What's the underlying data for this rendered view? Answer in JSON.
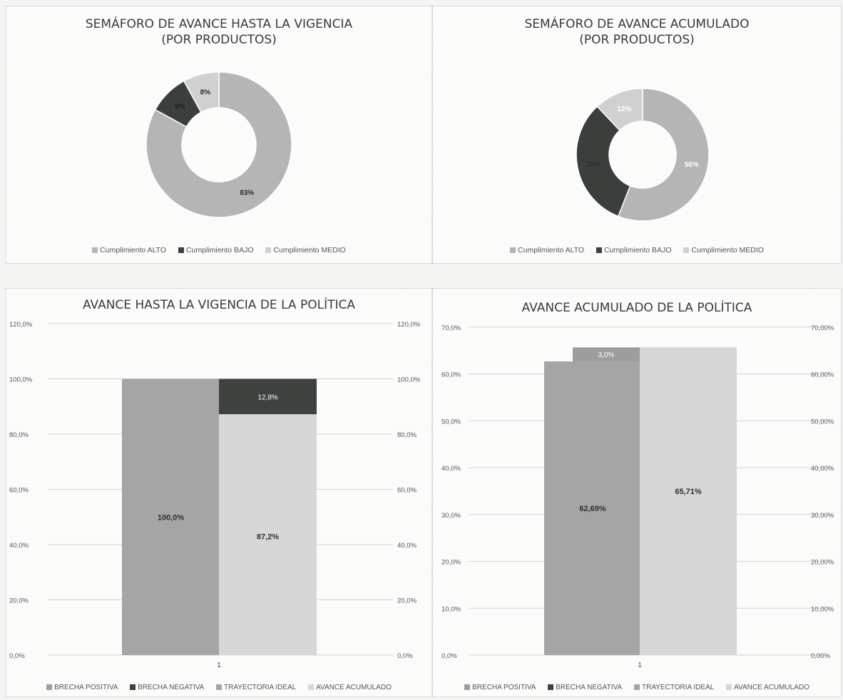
{
  "colors": {
    "alto": "#b5b5b5",
    "bajo": "#3a3f3c",
    "medio": "#d0d0d0",
    "brecha_positiva": "#9d9d9d",
    "brecha_negativa": "#3d423f",
    "trayectoria_ideal": "#a5a5a5",
    "avance_acumulado": "#d7d7d7",
    "grid": "#d4d4d4"
  },
  "chart_data": [
    {
      "type": "pie",
      "donut": true,
      "title_line1": "SEMÁFORO DE AVANCE HASTA LA VIGENCIA",
      "title_line2": "(POR PRODUCTOS)",
      "slices": [
        {
          "label": "Cumplimiento ALTO",
          "value": 83,
          "text": "83%"
        },
        {
          "label": "Cumplimiento BAJO",
          "value": 9,
          "text": "9%"
        },
        {
          "label": "Cumplimiento MEDIO",
          "value": 8,
          "text": "8%"
        }
      ],
      "legend": [
        "Cumplimiento ALTO",
        "Cumplimiento BAJO",
        "Cumplimiento MEDIO"
      ]
    },
    {
      "type": "pie",
      "donut": true,
      "title_line1": "SEMÁFORO DE AVANCE ACUMULADO",
      "title_line2": "(POR PRODUCTOS)",
      "slices": [
        {
          "label": "Cumplimiento ALTO",
          "value": 56,
          "text": "56%"
        },
        {
          "label": "Cumplimiento BAJO",
          "value": 32,
          "text": "32%"
        },
        {
          "label": "Cumplimiento MEDIO",
          "value": 12,
          "text": "12%"
        }
      ],
      "legend": [
        "Cumplimiento ALTO",
        "Cumplimiento BAJO",
        "Cumplimiento MEDIO"
      ]
    },
    {
      "type": "bar",
      "title": "AVANCE HASTA LA VIGENCIA DE LA POLÍTICA",
      "categories": [
        "1"
      ],
      "ylim": [
        0,
        120
      ],
      "yticks": [
        "0,0%",
        "20,0%",
        "40,0%",
        "60,0%",
        "80,0%",
        "100,0%",
        "120,0%"
      ],
      "series": [
        {
          "name": "BRECHA POSITIVA",
          "value": 0
        },
        {
          "name": "BRECHA NEGATIVA",
          "value": 12.8,
          "text": "12,8%"
        },
        {
          "name": "TRAYECTORIA IDEAL",
          "value": 100.0,
          "text": "100,0%"
        },
        {
          "name": "AVANCE ACUMULADO",
          "value": 87.2,
          "text": "87,2%"
        }
      ],
      "legend": [
        "BRECHA POSITIVA",
        "BRECHA NEGATIVA",
        "TRAYECTORIA IDEAL",
        "AVANCE ACUMULADO"
      ]
    },
    {
      "type": "bar",
      "title": "AVANCE ACUMULADO DE LA POLÍTICA",
      "categories": [
        "1"
      ],
      "ylim": [
        0,
        70
      ],
      "yticks_left": [
        "0,0%",
        "10,0%",
        "20,0%",
        "30,0%",
        "40,0%",
        "50,0%",
        "60,0%",
        "70,0%"
      ],
      "yticks_right": [
        "0,00%",
        "10,00%",
        "20,00%",
        "30,00%",
        "40,00%",
        "50,00%",
        "60,00%",
        "70,00%"
      ],
      "series": [
        {
          "name": "BRECHA POSITIVA",
          "value": 3.0,
          "text": "3,0%"
        },
        {
          "name": "BRECHA NEGATIVA",
          "value": 0
        },
        {
          "name": "TRAYECTORIA IDEAL",
          "value": 62.69,
          "text": "62,69%"
        },
        {
          "name": "AVANCE ACUMULADO",
          "value": 65.71,
          "text": "65,71%"
        }
      ],
      "legend": [
        "BRECHA POSITIVA",
        "BRECHA NEGATIVA",
        "TRAYECTORIA IDEAL",
        "AVANCE ACUMULADO"
      ]
    }
  ]
}
